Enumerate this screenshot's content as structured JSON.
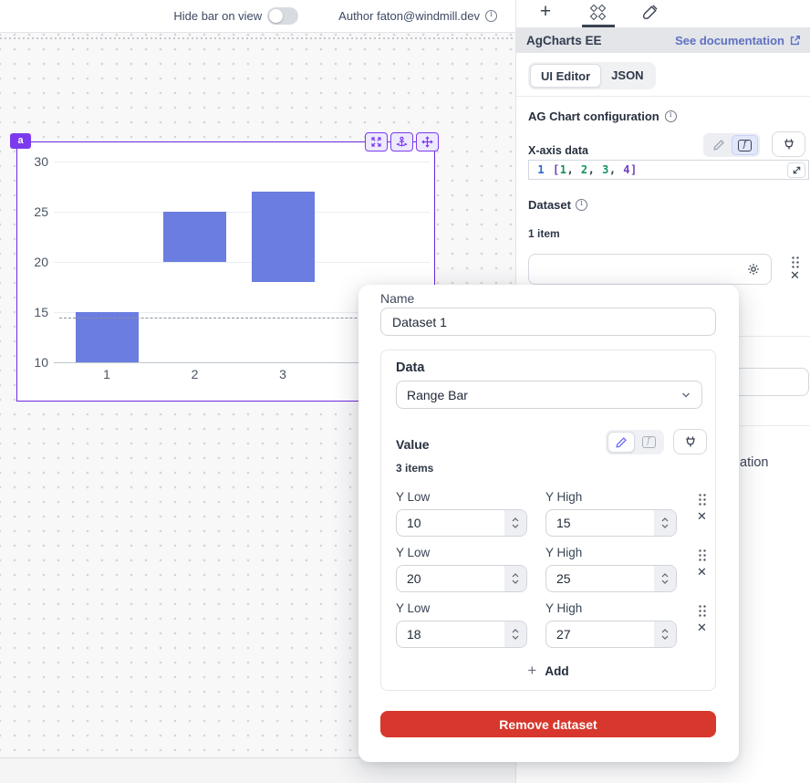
{
  "colors": {
    "accent_purple": "#7c3aed",
    "accent_purple_bg": "#ede9fe",
    "bar_blue": "#6b7de0",
    "link_indigo": "#5e70c3",
    "danger_red": "#d7372c",
    "navy_text": "#27303f"
  },
  "icons": {
    "panel_tabs": [
      "plus-icon",
      "components-icon",
      "brush-icon"
    ],
    "chart_toolbar": [
      "expand-icon",
      "anchor-icon",
      "move-icon"
    ],
    "controls": [
      "pencil-icon",
      "function-icon",
      "plug-icon",
      "gear-icon",
      "drag-handle-icon",
      "close-icon",
      "chevron-down-icon",
      "external-link-icon",
      "expand-code-icon",
      "info-icon",
      "stepper-icon"
    ]
  },
  "topbar": {
    "hide_bar_label": "Hide bar on view",
    "author_label": "Author faton@windmill.dev"
  },
  "canvas": {
    "component_badge": "a"
  },
  "chart_data": {
    "type": "bar",
    "subtype": "range-bar",
    "categories": [
      1,
      2,
      3,
      4
    ],
    "series": [
      {
        "name": "Dataset 1",
        "ranges": [
          [
            10,
            15
          ],
          [
            20,
            25
          ],
          [
            18,
            27
          ]
        ]
      }
    ],
    "y_ticks": [
      30,
      25,
      20,
      15,
      10
    ],
    "ylim": [
      8.75,
      31.25
    ],
    "xlabel": "",
    "ylabel": "",
    "grid": true,
    "legend": false,
    "bar_color": "#6b7de0",
    "dashed_line_y": 14.5
  },
  "right_panel": {
    "header_title": "AgCharts EE",
    "doc_link": "See documentation",
    "editor_tabs": {
      "ui_editor": "UI Editor",
      "json": "JSON"
    },
    "config_title": "AG Chart configuration",
    "xaxis_label": "X-axis data",
    "code": {
      "line_number": "1",
      "tokens": [
        {
          "t": "[",
          "c": "#6f3fc1"
        },
        {
          "t": "1",
          "c": "#12925f"
        },
        {
          "t": ", ",
          "c": "#374151"
        },
        {
          "t": "2",
          "c": "#12925f"
        },
        {
          "t": ", ",
          "c": "#374151"
        },
        {
          "t": "3",
          "c": "#12925f"
        },
        {
          "t": ", ",
          "c": "#374151"
        },
        {
          "t": "4",
          "c": "#6f3fc1"
        },
        {
          "t": "]",
          "c": "#6f3fc1"
        }
      ]
    },
    "dataset_label": "Dataset",
    "dataset_count": "1 item",
    "truncated_text": "ation"
  },
  "modal": {
    "name_label": "Name",
    "name_value": "Dataset 1",
    "data_section": {
      "title": "Data",
      "type_value": "Range Bar"
    },
    "value_section": {
      "title": "Value",
      "items_count": "3 items",
      "rows": [
        {
          "low_label": "Y Low",
          "low": "10",
          "high_label": "Y High",
          "high": "15"
        },
        {
          "low_label": "Y Low",
          "low": "20",
          "high_label": "Y High",
          "high": "25"
        },
        {
          "low_label": "Y Low",
          "low": "18",
          "high_label": "Y High",
          "high": "27"
        }
      ],
      "add_label": "Add"
    },
    "remove_label": "Remove dataset"
  }
}
